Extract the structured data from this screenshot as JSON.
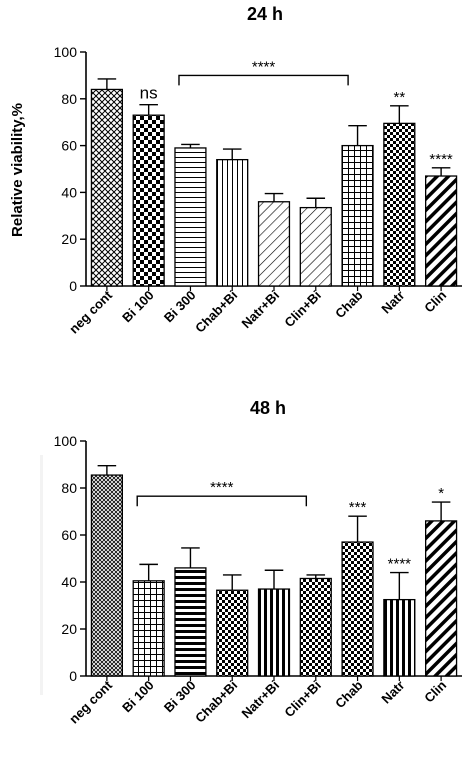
{
  "chart_data": [
    {
      "type": "bar",
      "title": "24 h",
      "ylabel": "Relative viability,%",
      "xlabel": "",
      "ylim": [
        0,
        100
      ],
      "yticks": [
        0,
        20,
        40,
        60,
        80,
        100
      ],
      "categories": [
        "neg cont",
        "Bi 100",
        "Bi 300",
        "Chab+Bi",
        "Natr+Bi",
        "Clin+Bi",
        "Chab",
        "Natr",
        "Clin"
      ],
      "values": [
        84,
        73,
        59,
        54,
        36,
        33.5,
        60,
        69.5,
        47
      ],
      "errors": [
        4.5,
        4.5,
        1.5,
        4.5,
        3.5,
        4,
        8.5,
        7.5,
        3.5
      ],
      "patterns": [
        "crosshatch",
        "checker",
        "horizontal",
        "vertical",
        "diagonal",
        "diagonal",
        "grid",
        "dots",
        "diagonal-bold"
      ],
      "annotations": [
        {
          "category": "Bi 100",
          "text": "ns"
        },
        {
          "category": "Natr",
          "text": "**"
        },
        {
          "category": "Clin",
          "text": "****"
        }
      ],
      "bracket": {
        "from": "Bi 300",
        "to": "Natr+Bi",
        "to_bar": "Chab",
        "text": "****"
      }
    },
    {
      "type": "bar",
      "title": "48 h",
      "ylabel": "",
      "xlabel": "",
      "ylim": [
        0,
        100
      ],
      "yticks": [
        0,
        20,
        40,
        60,
        80,
        100
      ],
      "categories": [
        "neg cont",
        "Bi 100",
        "Bi 300",
        "Chab+Bi",
        "Natr+Bi",
        "Clin+Bi",
        "Chab",
        "Natr",
        "Clin"
      ],
      "values": [
        85.5,
        40.5,
        46,
        36.5,
        37,
        41.5,
        57,
        32.5,
        66
      ],
      "errors": [
        4,
        7,
        8.5,
        6.5,
        8,
        1.5,
        11,
        11.5,
        8
      ],
      "patterns": [
        "fine-crosshatch",
        "grid",
        "horizontal-bold",
        "dots",
        "vertical-bold",
        "dots",
        "dots",
        "vertical-bold",
        "diagonal-bold"
      ],
      "annotations": [
        {
          "category": "Chab",
          "text": "***"
        },
        {
          "category": "Natr",
          "text": "****"
        },
        {
          "category": "Clin",
          "text": "*"
        }
      ],
      "bracket": {
        "from": "Bi 100",
        "to": "Clin+Bi",
        "text": "****"
      }
    }
  ]
}
